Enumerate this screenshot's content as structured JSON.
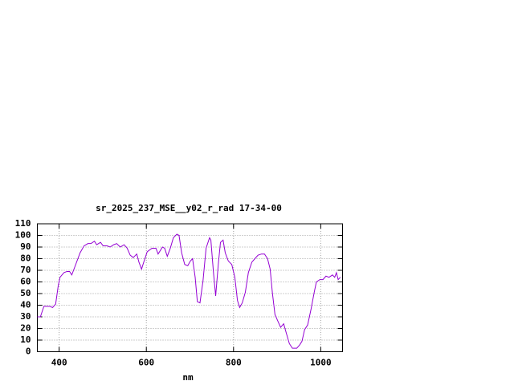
{
  "chart_data": {
    "type": "line",
    "title": "sr_2025_237_MSE__y02_r_rad 17-34-00",
    "x_label": "nm",
    "x": [
      350,
      357,
      365,
      378,
      385,
      392,
      398,
      402,
      411,
      418,
      424,
      429,
      438,
      448,
      457,
      466,
      473,
      481,
      486,
      495,
      501,
      510,
      517,
      525,
      532,
      540,
      549,
      556,
      563,
      570,
      578,
      583,
      589,
      594,
      602,
      613,
      622,
      627,
      637,
      642,
      648,
      655,
      662,
      670,
      675,
      681,
      688,
      695,
      701,
      706,
      712,
      717,
      723,
      730,
      737,
      745,
      748,
      754,
      759,
      765,
      770,
      776,
      781,
      788,
      796,
      803,
      809,
      814,
      820,
      827,
      834,
      842,
      849,
      856,
      864,
      871,
      878,
      884,
      889,
      895,
      902,
      908,
      915,
      921,
      928,
      935,
      945,
      952,
      957,
      963,
      970,
      978,
      985,
      990,
      998,
      1005,
      1012,
      1019,
      1027,
      1032,
      1036,
      1040,
      1045
    ],
    "values": [
      30,
      30,
      39,
      39,
      38,
      41,
      57,
      64,
      68,
      69,
      69,
      66,
      75,
      85,
      91,
      93,
      93,
      95,
      92,
      94,
      91,
      91,
      90,
      92,
      93,
      90,
      92,
      89,
      83,
      81,
      84,
      77,
      71,
      77,
      86,
      89,
      89,
      84,
      90,
      89,
      82,
      89,
      98,
      101,
      100,
      85,
      75,
      74,
      78,
      80,
      64,
      43,
      42,
      61,
      89,
      98,
      96,
      68,
      48,
      75,
      94,
      96,
      85,
      78,
      75,
      64,
      44,
      38,
      42,
      51,
      68,
      77,
      80,
      83,
      84,
      84,
      80,
      71,
      51,
      32,
      26,
      21,
      24,
      16,
      7,
      3,
      3,
      6,
      9,
      19,
      23,
      37,
      51,
      60,
      62,
      62,
      65,
      64,
      66,
      64,
      68,
      62,
      64
    ],
    "color": "#9400d3",
    "xlim": [
      350,
      1050
    ],
    "xticks": [
      400,
      600,
      800,
      1000
    ],
    "ylim": [
      0,
      110
    ],
    "yticks": [
      0,
      10,
      20,
      30,
      40,
      50,
      60,
      70,
      80,
      90,
      100,
      110
    ],
    "grid": true
  }
}
